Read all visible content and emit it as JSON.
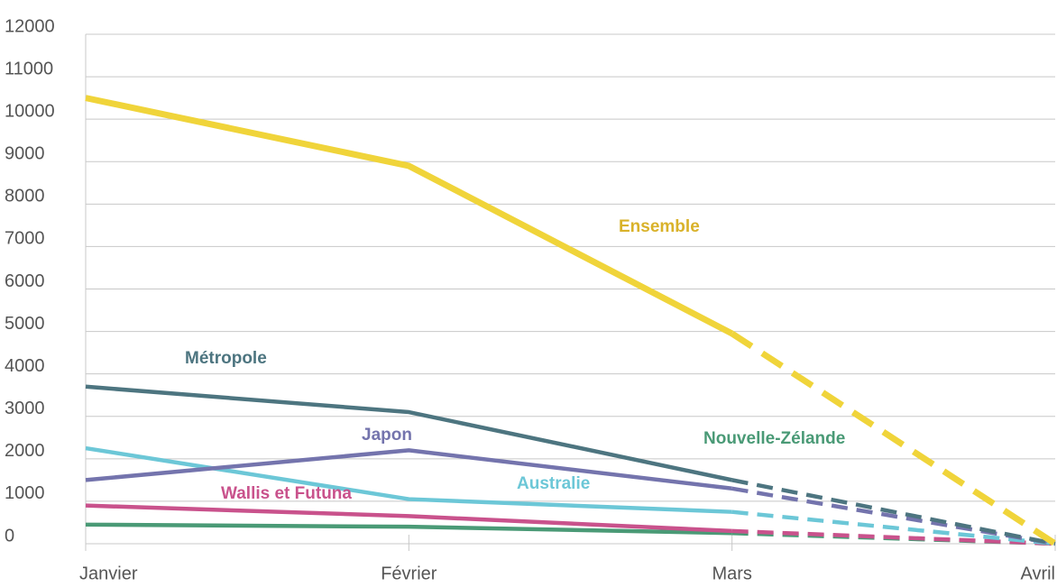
{
  "chart_data": {
    "type": "line",
    "categories": [
      "Janvier",
      "Février",
      "Mars",
      "Avril"
    ],
    "series": [
      {
        "name": "Ensemble",
        "color": "#f0d43a",
        "label_color": "#d9b22a",
        "values": [
          10500,
          8900,
          4950,
          0
        ]
      },
      {
        "name": "Métropole",
        "color": "#4d7580",
        "values": [
          3700,
          3100,
          1500,
          0
        ]
      },
      {
        "name": "Japon",
        "color": "#7474ad",
        "values": [
          1500,
          2200,
          1300,
          0
        ]
      },
      {
        "name": "Australie",
        "color": "#6cc7d7",
        "values": [
          2250,
          1050,
          750,
          0
        ]
      },
      {
        "name": "Wallis et Futuna",
        "color": "#c9528c",
        "values": [
          900,
          650,
          300,
          0
        ]
      },
      {
        "name": "Nouvelle-Zélande",
        "color": "#4a9a76",
        "values": [
          450,
          400,
          250,
          0
        ]
      }
    ],
    "dashed_from_index": 2,
    "ylim": [
      0,
      12000
    ],
    "yticks": [
      0,
      1000,
      2000,
      3000,
      4000,
      5000,
      6000,
      7000,
      8000,
      9000,
      10000,
      11000,
      12000
    ],
    "grid": true
  }
}
